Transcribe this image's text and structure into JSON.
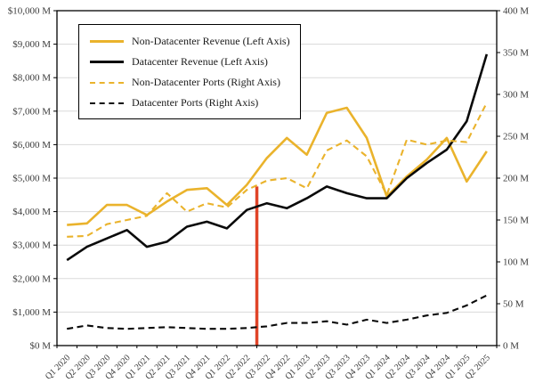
{
  "chart_data": {
    "type": "line",
    "title": "",
    "categories": [
      "Q1 2020",
      "Q2 2020",
      "Q3 2020",
      "Q4 2020",
      "Q1 2021",
      "Q2 2021",
      "Q3 2021",
      "Q4 2021",
      "Q1 2022",
      "Q2 2022",
      "Q3 2022",
      "Q4 2022",
      "Q1 2023",
      "Q2 2023",
      "Q3 2023",
      "Q4 2023",
      "Q1 2024",
      "Q2 2024",
      "Q3 2024",
      "Q4 2024",
      "Q1 2025",
      "Q2 2025"
    ],
    "series": [
      {
        "name": "Non-Datacenter Revenue (Left Axis)",
        "axis": "left",
        "style": "solid",
        "color": "#EAB32C",
        "values": [
          3600,
          3650,
          4200,
          4200,
          3900,
          4300,
          4650,
          4700,
          4200,
          4800,
          5600,
          6200,
          5700,
          6950,
          7100,
          6200,
          4450,
          5050,
          5550,
          6200,
          4900,
          5800
        ]
      },
      {
        "name": "Datacenter Revenue (Left Axis)",
        "axis": "left",
        "style": "solid",
        "color": "#0a0a0a",
        "values": [
          2550,
          2950,
          3200,
          3450,
          2950,
          3100,
          3550,
          3700,
          3500,
          4050,
          4250,
          4100,
          4400,
          4750,
          4550,
          4400,
          4400,
          5000,
          5450,
          5850,
          6700,
          8700
        ]
      },
      {
        "name": "Non-Datacenter Ports (Right Axis)",
        "axis": "right",
        "style": "dashed",
        "color": "#EAB32C",
        "values": [
          130,
          131,
          145,
          150,
          155,
          182,
          160,
          170,
          165,
          186,
          197,
          200,
          188,
          233,
          245,
          226,
          180,
          246,
          240,
          245,
          243,
          290
        ]
      },
      {
        "name": "Datacenter Ports (Right Axis)",
        "axis": "right",
        "style": "dashed",
        "color": "#0a0a0a",
        "values": [
          20,
          24,
          21,
          20,
          21,
          22,
          21,
          20,
          20,
          21,
          23,
          27,
          27,
          29,
          25,
          31,
          27,
          31,
          36,
          39,
          48,
          60
        ]
      }
    ],
    "left_axis": {
      "min": 0,
      "max": 10000,
      "step": 1000,
      "labels": [
        "$0 M",
        "$1,000 M",
        "$2,000 M",
        "$3,000 M",
        "$4,000 M",
        "$5,000 M",
        "$6,000 M",
        "$7,000 M",
        "$8,000 M",
        "$9,000 M",
        "$10,000 M"
      ]
    },
    "right_axis": {
      "min": 0,
      "max": 400,
      "step": 50,
      "labels": [
        "0 M",
        "50 M",
        "100 M",
        "150 M",
        "200 M",
        "250 M",
        "300 M",
        "350 M",
        "400 M"
      ]
    },
    "marker": {
      "type": "vline",
      "between": [
        "Q2 2022",
        "Q3 2022"
      ],
      "top_value_left_axis": 4750,
      "color": "#E04428"
    },
    "grid": true,
    "legend_position": "top-left",
    "colors": {
      "non_datacenter": "#EAB32C",
      "datacenter": "#0a0a0a",
      "marker": "#E04428",
      "grid": "#DADADA",
      "axis_text": "#3b3b3b",
      "axis_line": "#000000"
    }
  }
}
